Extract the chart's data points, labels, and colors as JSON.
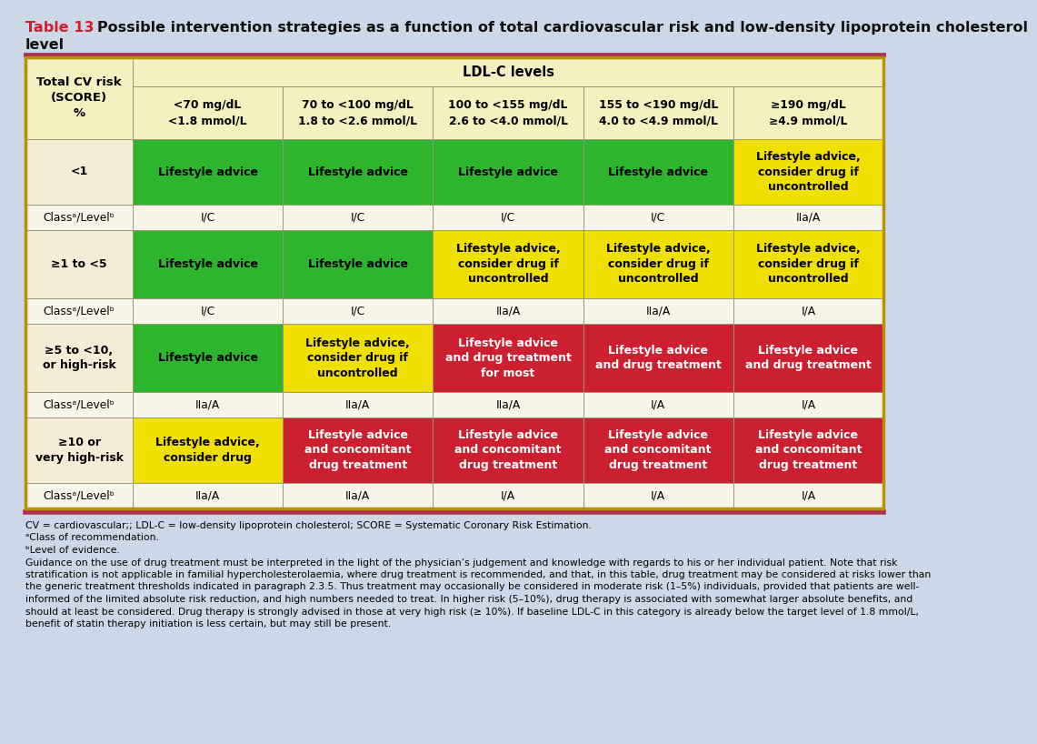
{
  "title_prefix": "Table 13",
  "title_rest": "   Possible intervention strategies as a function of total cardiovascular risk and low-density lipoprotein cholesterol",
  "title_line2": "level",
  "bg_color": "#ccd8e7",
  "header_bg": "#f5f0c0",
  "beige": "#f5ecd5",
  "green": "#2db52d",
  "yellow": "#f0e000",
  "red": "#cc1f30",
  "col0_header": "Total CV risk\n(SCORE)\n%",
  "ldlc_header": "LDL-C levels",
  "col_headers": [
    "<70 mg/dL\n<1.8 mmol/L",
    "70 to <100 mg/dL\n1.8 to <2.6 mmol/L",
    "100 to <155 mg/dL\n2.6 to <4.0 mmol/L",
    "155 to <190 mg/dL\n4.0 to <4.9 mmol/L",
    "≥190 mg/dL\n≥4.9 mmol/L"
  ],
  "row_labels": [
    "<1",
    "Classᵃ/Levelᵇ",
    "≥1 to <5",
    "Classᵃ/Levelᵇ",
    "≥5 to <10,\nor high-risk",
    "Classᵃ/Levelᵇ",
    "≥10 or\nvery high-risk",
    "Classᵃ/Levelᵇ"
  ],
  "row_is_class": [
    false,
    true,
    false,
    true,
    false,
    true,
    false,
    true
  ],
  "cell_data": [
    [
      "green",
      "green",
      "green",
      "green",
      "yellow"
    ],
    [
      "w",
      "w",
      "w",
      "w",
      "w"
    ],
    [
      "green",
      "green",
      "yellow",
      "yellow",
      "yellow"
    ],
    [
      "w",
      "w",
      "w",
      "w",
      "w"
    ],
    [
      "green",
      "yellow",
      "red",
      "red",
      "red"
    ],
    [
      "w",
      "w",
      "w",
      "w",
      "w"
    ],
    [
      "yellow",
      "red",
      "red",
      "red",
      "red"
    ],
    [
      "w",
      "w",
      "w",
      "w",
      "w"
    ]
  ],
  "cell_text": [
    [
      "Lifestyle advice",
      "Lifestyle advice",
      "Lifestyle advice",
      "Lifestyle advice",
      "Lifestyle advice,\nconsider drug if\nuncontrolled"
    ],
    [
      "I/C",
      "I/C",
      "I/C",
      "I/C",
      "IIa/A"
    ],
    [
      "Lifestyle advice",
      "Lifestyle advice",
      "Lifestyle advice,\nconsider drug if\nuncontrolled",
      "Lifestyle advice,\nconsider drug if\nuncontrolled",
      "Lifestyle advice,\nconsider drug if\nuncontrolled"
    ],
    [
      "I/C",
      "I/C",
      "IIa/A",
      "IIa/A",
      "I/A"
    ],
    [
      "Lifestyle advice",
      "Lifestyle advice,\nconsider drug if\nuncontrolled",
      "Lifestyle advice\nand drug treatment\nfor most",
      "Lifestyle advice\nand drug treatment",
      "Lifestyle advice\nand drug treatment"
    ],
    [
      "IIa/A",
      "IIa/A",
      "IIa/A",
      "I/A",
      "I/A"
    ],
    [
      "Lifestyle advice,\nconsider drug",
      "Lifestyle advice\nand concomitant\ndrug treatment",
      "Lifestyle advice\nand concomitant\ndrug treatment",
      "Lifestyle advice\nand concomitant\ndrug treatment",
      "Lifestyle advice\nand concomitant\ndrug treatment"
    ],
    [
      "IIa/A",
      "IIa/A",
      "I/A",
      "I/A",
      "I/A"
    ]
  ],
  "border_color": "#b89000",
  "grid_color": "#999977",
  "separator_color": "#b03050",
  "footnote_lines": [
    "CV = cardiovascular;; LDL-C = low-density lipoprotein cholesterol; SCORE = Systematic Coronary Risk Estimation.",
    "ᵃClass of recommendation.",
    "ᵇLevel of evidence.",
    "Guidance on the use of drug treatment must be interpreted in the light of the physician’s judgement and knowledge with regards to his or her individual patient. Note that risk",
    "stratification is not applicable in familial hypercholesterolaemia, where drug treatment is recommended, and that, in this table, drug treatment may be considered at risks lower than",
    "the generic treatment thresholds indicated in paragraph 2.3.5. Thus treatment may occasionally be considered in moderate risk (1–5%) individuals, provided that patients are well-",
    "informed of the limited absolute risk reduction, and high numbers needed to treat. In higher risk (5–10%), drug therapy is associated with somewhat larger absolute benefits, and",
    "should at least be considered. Drug therapy is strongly advised in those at very high risk (≥ 10%). If baseline LDL-C in this category is already below the target level of 1.8 mmol/L,",
    "benefit of statin therapy initiation is less certain, but may still be present."
  ]
}
